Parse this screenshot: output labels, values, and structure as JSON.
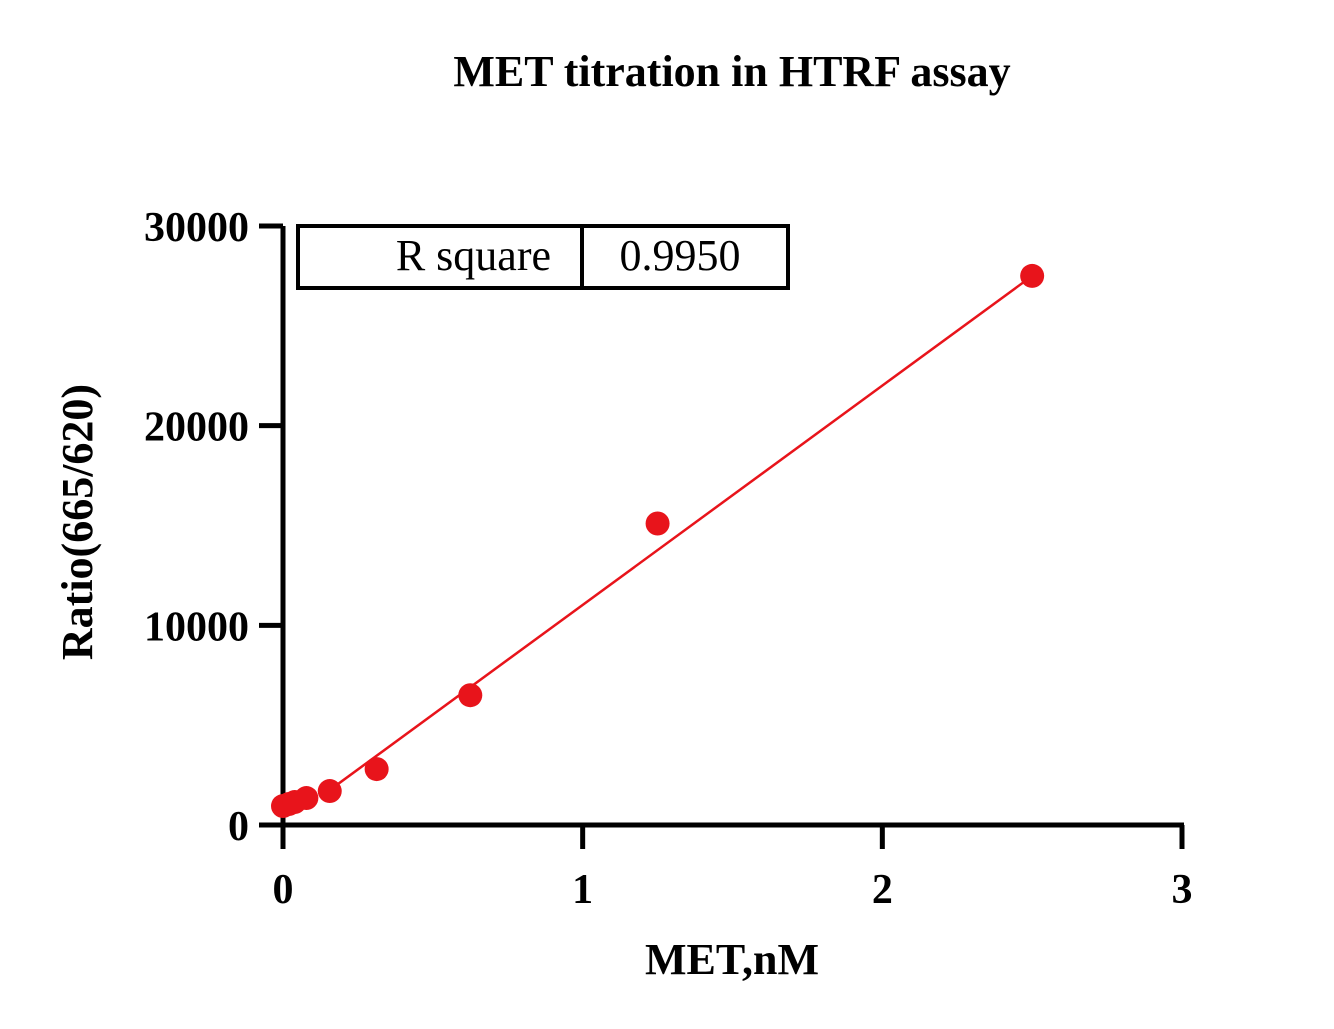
{
  "chart_data": {
    "type": "scatter",
    "title": "MET titration in HTRF assay",
    "xlabel": "MET,nM",
    "ylabel": "Ratio(665/620)",
    "xlim": [
      0,
      3
    ],
    "ylim": [
      0,
      30000
    ],
    "x_ticks": [
      0,
      1,
      2,
      3
    ],
    "y_ticks": [
      0,
      10000,
      20000,
      30000
    ],
    "x_tick_labels": [
      "0",
      "1",
      "2",
      "3"
    ],
    "y_tick_labels": [
      "0",
      "10000",
      "20000",
      "30000"
    ],
    "grid": false,
    "point_color": "#e8141b",
    "line_color": "#e8141b",
    "series": [
      {
        "x": [
          0,
          0.0195,
          0.039,
          0.078,
          0.156,
          0.3125,
          0.625,
          1.25,
          2.5
        ],
        "y": [
          950,
          1050,
          1150,
          1350,
          1700,
          2800,
          6500,
          15100,
          27500
        ]
      }
    ],
    "fit_line": {
      "x": [
        0.156,
        2.5
      ],
      "y": [
        1750,
        27500
      ]
    },
    "stats_table": {
      "label": "R square",
      "value": "0.9950"
    }
  }
}
